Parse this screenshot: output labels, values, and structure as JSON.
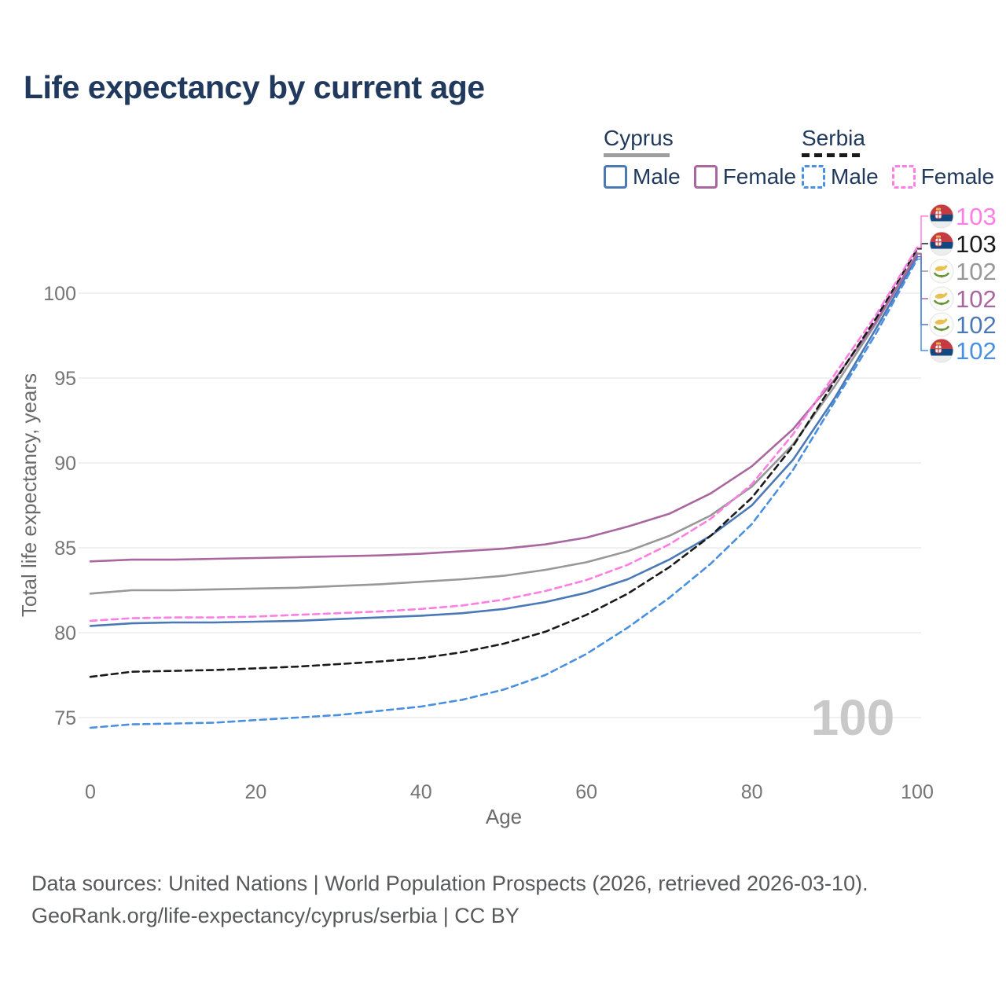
{
  "title": "Life expectancy by current age",
  "legend": {
    "groups": [
      {
        "country": "Cyprus",
        "line_style": "solid",
        "underline_color": "#9e9e9e",
        "items": [
          {
            "label": "Male",
            "color": "#4a79b6",
            "dashed": false
          },
          {
            "label": "Female",
            "color": "#a9669f",
            "dashed": false
          }
        ]
      },
      {
        "country": "Serbia",
        "line_style": "dashed",
        "underline_color": "#1a1a1a",
        "items": [
          {
            "label": "Male",
            "color": "#4a90e2",
            "dashed": true
          },
          {
            "label": "Female",
            "color": "#ff7ee3",
            "dashed": true
          }
        ]
      }
    ]
  },
  "chart_data": {
    "type": "line",
    "title": "Life expectancy by current age",
    "xlabel": "Age",
    "ylabel": "Total life expectancy, years",
    "xlim": [
      0,
      100
    ],
    "ylim": [
      73,
      105
    ],
    "x_ticks": [
      0,
      20,
      40,
      60,
      80,
      100
    ],
    "y_ticks": [
      75,
      80,
      85,
      90,
      95,
      100
    ],
    "grid": "horizontal",
    "legend_position": "top-right",
    "watermark": "100",
    "x": [
      0,
      5,
      10,
      15,
      20,
      25,
      30,
      35,
      40,
      45,
      50,
      55,
      60,
      65,
      70,
      75,
      80,
      85,
      90,
      95,
      100
    ],
    "series": [
      {
        "name": "Cyprus",
        "country": "Cyprus",
        "sex": "both",
        "color": "#98989a",
        "dashed": false,
        "flag": "cyprus",
        "end_label": "102",
        "label_slot": 2,
        "values": [
          82.3,
          82.5,
          82.5,
          82.55,
          82.6,
          82.65,
          82.75,
          82.85,
          83.0,
          83.15,
          83.35,
          83.7,
          84.15,
          84.8,
          85.7,
          86.9,
          88.6,
          91.1,
          94.5,
          98.2,
          102.35
        ]
      },
      {
        "name": "Cyprus Male",
        "country": "Cyprus",
        "sex": "male",
        "color": "#4a79b6",
        "dashed": false,
        "flag": "cyprus",
        "end_label": "102",
        "label_slot": 4,
        "values": [
          80.4,
          80.55,
          80.6,
          80.6,
          80.65,
          80.7,
          80.8,
          80.9,
          81.0,
          81.15,
          81.4,
          81.8,
          82.35,
          83.15,
          84.3,
          85.7,
          87.5,
          90.2,
          93.8,
          97.9,
          102.15
        ]
      },
      {
        "name": "Cyprus Female",
        "country": "Cyprus",
        "sex": "female",
        "color": "#a9669f",
        "dashed": false,
        "flag": "cyprus",
        "end_label": "102",
        "label_slot": 3,
        "values": [
          84.2,
          84.3,
          84.3,
          84.35,
          84.4,
          84.45,
          84.5,
          84.55,
          84.65,
          84.8,
          84.95,
          85.2,
          85.6,
          86.25,
          87.0,
          88.2,
          89.8,
          92.0,
          94.9,
          98.3,
          102.3
        ]
      },
      {
        "name": "Serbia",
        "country": "Serbia",
        "sex": "both",
        "color": "#1a1a1a",
        "dashed": true,
        "flag": "serbia",
        "end_label": "103",
        "label_slot": 1,
        "values": [
          77.4,
          77.7,
          77.75,
          77.8,
          77.9,
          78.0,
          78.15,
          78.3,
          78.5,
          78.85,
          79.35,
          80.05,
          81.05,
          82.3,
          83.85,
          85.7,
          87.95,
          91.0,
          94.8,
          98.5,
          102.6
        ]
      },
      {
        "name": "Serbia Male",
        "country": "Serbia",
        "sex": "male",
        "color": "#4a90e2",
        "dashed": true,
        "flag": "serbia",
        "end_label": "102",
        "label_slot": 5,
        "values": [
          74.4,
          74.6,
          74.65,
          74.7,
          74.85,
          75.0,
          75.15,
          75.4,
          75.65,
          76.05,
          76.65,
          77.5,
          78.75,
          80.3,
          82.05,
          84.05,
          86.4,
          89.6,
          93.6,
          97.6,
          102.0
        ]
      },
      {
        "name": "Serbia Female",
        "country": "Serbia",
        "sex": "female",
        "color": "#ff7ee3",
        "dashed": true,
        "flag": "serbia",
        "end_label": "103",
        "label_slot": 0,
        "values": [
          80.7,
          80.85,
          80.9,
          80.9,
          80.95,
          81.05,
          81.15,
          81.25,
          81.4,
          81.6,
          81.95,
          82.45,
          83.1,
          84.0,
          85.2,
          86.7,
          88.75,
          91.7,
          95.2,
          98.7,
          102.7
        ]
      }
    ]
  },
  "footer": {
    "line1": "Data sources: United Nations | World Population Prospects (2026, retrieved 2026-03-10).",
    "line2": "GeoRank.org/life-expectancy/cyprus/serbia | CC BY"
  }
}
